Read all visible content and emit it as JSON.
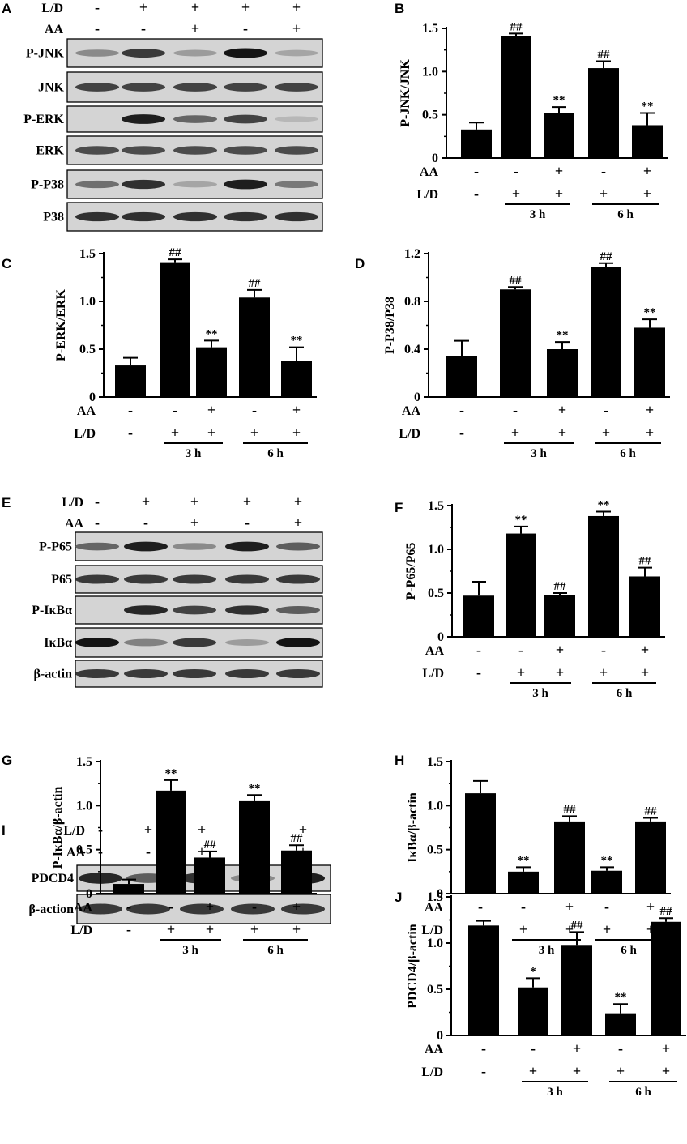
{
  "treatments": {
    "ld_label": "L/D",
    "aa_label": "AA",
    "ld": [
      "-",
      "+",
      "+",
      "+",
      "+"
    ],
    "aa": [
      "-",
      "-",
      "+",
      "-",
      "+"
    ],
    "groups": [
      "3 h",
      "6 h"
    ]
  },
  "blots": [
    {
      "panel": "A",
      "bands": [
        {
          "label": "P-JNK",
          "intensity": [
            0.35,
            0.8,
            0.25,
            1.0,
            0.2
          ]
        },
        {
          "label": "JNK",
          "intensity": [
            0.75,
            0.75,
            0.75,
            0.75,
            0.75
          ]
        },
        {
          "label": "P-ERK",
          "intensity": [
            0.0,
            0.95,
            0.55,
            0.75,
            0.1
          ]
        },
        {
          "label": "ERK",
          "intensity": [
            0.7,
            0.7,
            0.7,
            0.7,
            0.7
          ]
        },
        {
          "label": "P-P38",
          "intensity": [
            0.5,
            0.85,
            0.2,
            0.95,
            0.45
          ]
        },
        {
          "label": "P38",
          "intensity": [
            0.85,
            0.85,
            0.85,
            0.85,
            0.85
          ]
        }
      ]
    },
    {
      "panel": "E",
      "bands": [
        {
          "label": "P-P65",
          "intensity": [
            0.55,
            0.95,
            0.35,
            0.95,
            0.6
          ]
        },
        {
          "label": "P65",
          "intensity": [
            0.8,
            0.8,
            0.8,
            0.8,
            0.8
          ]
        },
        {
          "label": "P-IκBα",
          "intensity": [
            0.0,
            0.9,
            0.75,
            0.85,
            0.6
          ]
        },
        {
          "label": "IκBα",
          "intensity": [
            1.0,
            0.4,
            0.8,
            0.25,
            1.0
          ]
        },
        {
          "label": "β-actin",
          "intensity": [
            0.8,
            0.8,
            0.8,
            0.8,
            0.8
          ]
        }
      ]
    },
    {
      "panel": "I",
      "bands": [
        {
          "label": "PDCD4",
          "intensity": [
            0.9,
            0.6,
            0.85,
            0.35,
            0.95
          ]
        },
        {
          "label": "β-action",
          "intensity": [
            0.8,
            0.8,
            0.8,
            0.8,
            0.8
          ]
        }
      ]
    }
  ],
  "chart_data": [
    {
      "panel": "B",
      "type": "bar",
      "ylabel": "P-JNK/JNK",
      "ylim": [
        0,
        1.5
      ],
      "yticks": [
        "0",
        "0.5",
        "1.0",
        "1.5"
      ],
      "values": [
        0.33,
        1.41,
        0.52,
        1.04,
        0.38
      ],
      "errors": [
        0.08,
        0.03,
        0.07,
        0.08,
        0.14
      ],
      "marks": [
        "",
        "##",
        "**",
        "##",
        "**"
      ]
    },
    {
      "panel": "C",
      "type": "bar",
      "ylabel": "P-ERK/ERK",
      "ylim": [
        0,
        1.5
      ],
      "yticks": [
        "0",
        "0.5",
        "1.0",
        "1.5"
      ],
      "values": [
        0.33,
        1.41,
        0.52,
        1.04,
        0.38
      ],
      "errors": [
        0.08,
        0.03,
        0.07,
        0.08,
        0.14
      ],
      "marks": [
        "",
        "##",
        "**",
        "##",
        "**"
      ]
    },
    {
      "panel": "D",
      "type": "bar",
      "ylabel": "P-P38/P38",
      "ylim": [
        0,
        1.2
      ],
      "yticks": [
        "0",
        "0.4",
        "0.8",
        "1.2"
      ],
      "values": [
        0.34,
        0.9,
        0.4,
        1.09,
        0.58
      ],
      "errors": [
        0.13,
        0.02,
        0.06,
        0.03,
        0.07
      ],
      "marks": [
        "",
        "##",
        "**",
        "##",
        "**"
      ]
    },
    {
      "panel": "F",
      "type": "bar",
      "ylabel": "P-P65/P65",
      "ylim": [
        0,
        1.5
      ],
      "yticks": [
        "0",
        "0.5",
        "1.0",
        "1.5"
      ],
      "values": [
        0.47,
        1.18,
        0.48,
        1.38,
        0.69
      ],
      "errors": [
        0.16,
        0.08,
        0.02,
        0.05,
        0.1
      ],
      "marks": [
        "",
        "**",
        "##",
        "**",
        "##"
      ]
    },
    {
      "panel": "G",
      "type": "bar",
      "ylabel": "P-IκBα/β-actin",
      "ylim": [
        0,
        1.5
      ],
      "yticks": [
        "0",
        "0.5",
        "1.0",
        "1.5"
      ],
      "values": [
        0.11,
        1.17,
        0.41,
        1.05,
        0.49
      ],
      "errors": [
        0.05,
        0.12,
        0.07,
        0.07,
        0.06
      ],
      "marks": [
        "",
        "**",
        "##",
        "**",
        "##"
      ]
    },
    {
      "panel": "H",
      "type": "bar",
      "ylabel": "IκBα/β-actin",
      "ylim": [
        0,
        1.5
      ],
      "yticks": [
        "0",
        "0.5",
        "1.0",
        "1.5"
      ],
      "values": [
        1.14,
        0.25,
        0.82,
        0.26,
        0.82
      ],
      "errors": [
        0.14,
        0.05,
        0.06,
        0.04,
        0.04
      ],
      "marks": [
        "",
        "**",
        "##",
        "**",
        "##"
      ]
    },
    {
      "panel": "J",
      "type": "bar",
      "ylabel": "PDCD4/β-actin",
      "ylim": [
        0,
        1.5
      ],
      "yticks": [
        "0",
        "0.5",
        "1.0",
        "1.5"
      ],
      "values": [
        1.19,
        0.52,
        0.98,
        0.24,
        1.23
      ],
      "errors": [
        0.05,
        0.1,
        0.14,
        0.1,
        0.04
      ],
      "marks": [
        "",
        "*",
        "##",
        "**",
        "##"
      ]
    }
  ]
}
